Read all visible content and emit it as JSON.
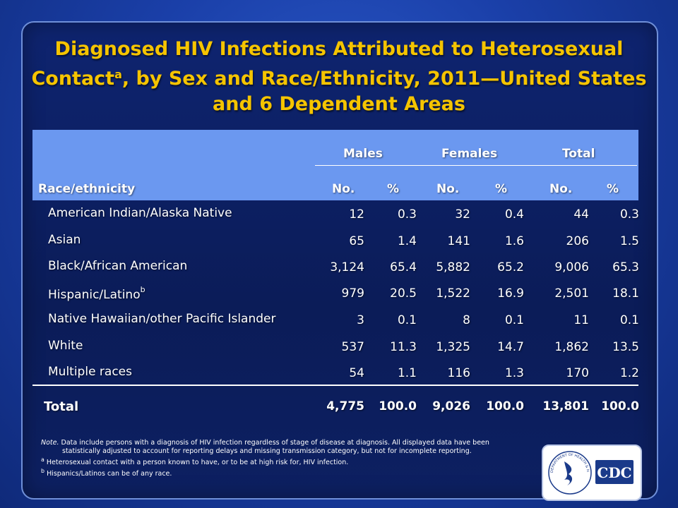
{
  "title": {
    "line1": "Diagnosed HIV Infections Attributed to Heterosexual",
    "line2_pre": "Contact",
    "line2_sup": "a",
    "line2_post": ", by Sex and Race/Ethnicity, 2011—United States",
    "line3": "and 6 Dependent Areas"
  },
  "table": {
    "row_header": "Race/ethnicity",
    "groups": [
      "Males",
      "Females",
      "Total"
    ],
    "subcols": [
      "No.",
      "%",
      "No.",
      "%",
      "No.",
      "%"
    ],
    "rows": [
      {
        "label": "American Indian/Alaska Native",
        "sup": "",
        "values": [
          "12",
          "0.3",
          "32",
          "0.4",
          "44",
          "0.3"
        ]
      },
      {
        "label": "Asian",
        "sup": "",
        "values": [
          "65",
          "1.4",
          "141",
          "1.6",
          "206",
          "1.5"
        ]
      },
      {
        "label": "Black/African American",
        "sup": "",
        "values": [
          "3,124",
          "65.4",
          "5,882",
          "65.2",
          "9,006",
          "65.3"
        ]
      },
      {
        "label": "Hispanic/Latino",
        "sup": "b",
        "values": [
          "979",
          "20.5",
          "1,522",
          "16.9",
          "2,501",
          "18.1"
        ]
      },
      {
        "label": "Native Hawaiian/other Pacific Islander",
        "sup": "",
        "values": [
          "3",
          "0.1",
          "8",
          "0.1",
          "11",
          "0.1"
        ]
      },
      {
        "label": "White",
        "sup": "",
        "values": [
          "537",
          "11.3",
          "1,325",
          "14.7",
          "1,862",
          "13.5"
        ]
      },
      {
        "label": "Multiple races",
        "sup": "",
        "values": [
          "54",
          "1.1",
          "116",
          "1.3",
          "170",
          "1.2"
        ]
      }
    ],
    "total": {
      "label": "Total",
      "values": [
        "4,775",
        "100.0",
        "9,026",
        "100.0",
        "13,801",
        "100.0"
      ]
    }
  },
  "notes": {
    "note_label": "Note.",
    "note_text1": "Data include persons with a diagnosis of HIV infection regardless of stage of disease at diagnosis. All displayed data have been",
    "note_text2": "statistically adjusted to account for reporting delays and missing transmission category, but not for incomplete reporting.",
    "footnote_a_mark": "a",
    "footnote_a": "Heterosexual contact with a person known to have, or to be at high risk for, HIV infection.",
    "footnote_b_mark": "b",
    "footnote_b": "Hispanics/Latinos can be of any race."
  },
  "logo": {
    "cdc_text": "CDC",
    "seal_text": "DEPARTMENT OF HEALTH & HUMAN SERVICES USA"
  },
  "colors": {
    "title": "#f5c400",
    "header_bg": "#6b98f0",
    "panel": "#0e2470",
    "background": "#1a3fa8"
  }
}
